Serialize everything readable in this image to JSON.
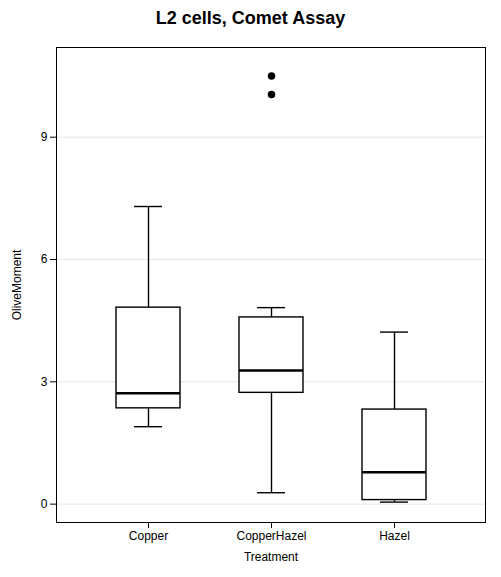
{
  "chart_data": {
    "type": "box",
    "title": "L2 cells, Comet Assay",
    "xlabel": "Treatment",
    "ylabel": "OliveMoment",
    "categories": [
      "Copper",
      "CopperHazel",
      "Hazel"
    ],
    "boxes": [
      {
        "q1": 2.35,
        "median": 2.72,
        "q3": 4.82,
        "whislo": 1.9,
        "whishi": 7.3,
        "fliers": []
      },
      {
        "q1": 2.73,
        "median": 3.28,
        "q3": 4.58,
        "whislo": 0.28,
        "whishi": 4.82,
        "fliers": [
          10.5,
          10.05
        ]
      },
      {
        "q1": 0.1,
        "median": 0.78,
        "q3": 2.32,
        "whislo": 0.05,
        "whishi": 4.22,
        "fliers": []
      }
    ],
    "color": "#ffffff",
    "ylim": [
      -0.45,
      11.2
    ],
    "yticks": [
      0,
      3,
      6,
      9
    ],
    "grid": true
  }
}
